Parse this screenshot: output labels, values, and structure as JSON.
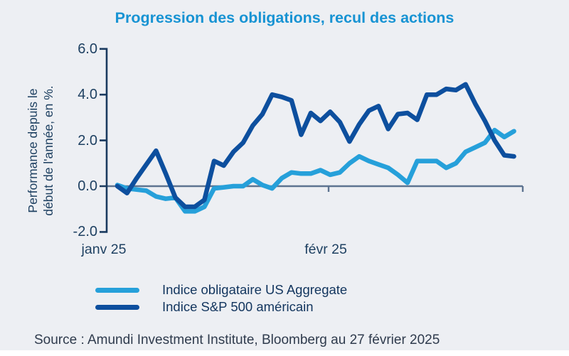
{
  "page": {
    "background": "#edeff3",
    "source_note": "Source : Amundi Investment Institute, Bloomberg au 27 février 2025"
  },
  "chart_data": {
    "type": "line",
    "title": "Progression des obligations, recul des actions",
    "title_color": "#1793d3",
    "ylabel": "Performance depuis le début de l'année, en %.",
    "ylabel_lines": [
      "Performance depuis le",
      "début de l'année, en %."
    ],
    "xlabel": "",
    "ylim": [
      -2.0,
      6.0
    ],
    "yticks": [
      6,
      4,
      2,
      0,
      -2
    ],
    "ytick_labels": [
      "6.0",
      "4.0",
      "2.0",
      "0.0",
      "-2.0"
    ],
    "xtick_labels": [
      "janv 25",
      "févr 25"
    ],
    "x_range_note": "daily performance, early janv 25 to 27 févr 25",
    "grid": false,
    "legend_position": "bottom-left",
    "axis_color": "#1a3a5f",
    "zero_line_color": "#5d7390",
    "series": [
      {
        "name": "Indice obligataire US Aggregate",
        "color": "#26a0da",
        "values": [
          0.05,
          -0.1,
          -0.15,
          -0.2,
          -0.45,
          -0.55,
          -0.5,
          -1.1,
          -1.1,
          -0.9,
          -0.1,
          -0.05,
          0.0,
          0.0,
          0.3,
          0.05,
          -0.1,
          0.35,
          0.6,
          0.55,
          0.55,
          0.7,
          0.5,
          0.6,
          1.0,
          1.3,
          1.1,
          0.95,
          0.8,
          0.5,
          0.15,
          1.1,
          1.1,
          1.1,
          0.8,
          1.0,
          1.5,
          1.7,
          1.9,
          2.45,
          2.15,
          2.4
        ]
      },
      {
        "name": "Indice S&P 500 américain",
        "color": "#0d4f9e",
        "values": [
          0.0,
          -0.3,
          0.35,
          0.95,
          1.55,
          0.55,
          -0.5,
          -0.9,
          -0.9,
          -0.6,
          1.1,
          0.9,
          1.5,
          1.9,
          2.65,
          3.15,
          4.0,
          3.9,
          3.75,
          2.25,
          3.2,
          2.85,
          3.25,
          2.8,
          1.95,
          2.7,
          3.3,
          3.5,
          2.5,
          3.15,
          3.2,
          2.9,
          4.0,
          4.0,
          4.25,
          4.2,
          4.45,
          3.6,
          2.85,
          2.0,
          1.35,
          1.3
        ]
      }
    ]
  }
}
